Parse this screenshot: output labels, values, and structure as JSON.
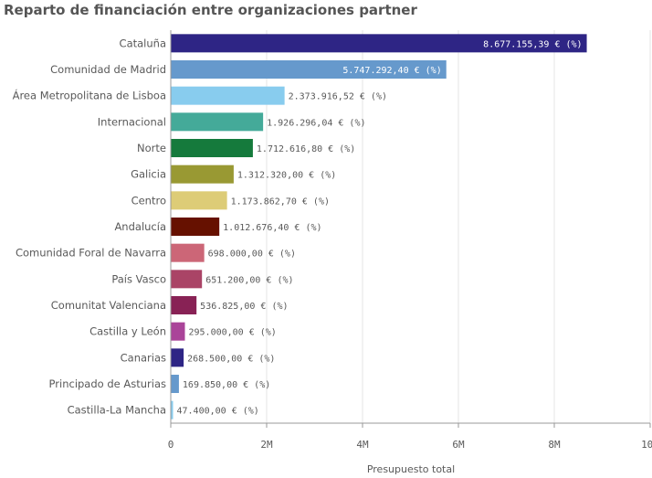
{
  "chart_data": {
    "type": "bar",
    "orientation": "horizontal",
    "title": "Reparto de financiación entre organizaciones partner",
    "xlabel": "Presupuesto total",
    "ylabel": "",
    "xlim": [
      0,
      10000000
    ],
    "ticks": [
      {
        "value": 0,
        "label": "0"
      },
      {
        "value": 2000000,
        "label": "2M"
      },
      {
        "value": 4000000,
        "label": "4M"
      },
      {
        "value": 6000000,
        "label": "6M"
      },
      {
        "value": 8000000,
        "label": "8M"
      },
      {
        "value": 10000000,
        "label": "10M"
      }
    ],
    "grid": "vertical",
    "bars": [
      {
        "category": "Cataluña",
        "value": 8677155.39,
        "label": "8.677.155,39 € (%)",
        "color": "#2e2585"
      },
      {
        "category": "Comunidad de Madrid",
        "value": 5747292.4,
        "label": "5.747.292,40 € (%)",
        "color": "#6699cc"
      },
      {
        "category": "Área Metropolitana de Lisboa",
        "value": 2373916.52,
        "label": "2.373.916,52 € (%)",
        "color": "#88ccee"
      },
      {
        "category": "Internacional",
        "value": 1926296.04,
        "label": "1.926.296,04 € (%)",
        "color": "#44aa99"
      },
      {
        "category": "Norte",
        "value": 1712616.8,
        "label": "1.712.616,80 € (%)",
        "color": "#157a3c"
      },
      {
        "category": "Galicia",
        "value": 1312320.0,
        "label": "1.312.320,00 € (%)",
        "color": "#999933"
      },
      {
        "category": "Centro",
        "value": 1173862.7,
        "label": "1.173.862,70 € (%)",
        "color": "#ddcc77"
      },
      {
        "category": "Andalucía",
        "value": 1012676.4,
        "label": "1.012.676,40 € (%)",
        "color": "#661100"
      },
      {
        "category": "Comunidad Foral de Navarra",
        "value": 698000.0,
        "label": "698.000,00 € (%)",
        "color": "#cc6677"
      },
      {
        "category": "País Vasco",
        "value": 651200.0,
        "label": "651.200,00 € (%)",
        "color": "#aa4466"
      },
      {
        "category": "Comunitat Valenciana",
        "value": 536825.0,
        "label": "536.825,00 € (%)",
        "color": "#882255"
      },
      {
        "category": "Castilla y León",
        "value": 295000.0,
        "label": "295.000,00 € (%)",
        "color": "#aa4499"
      },
      {
        "category": "Canarias",
        "value": 268500.0,
        "label": "268.500,00 € (%)",
        "color": "#2e2585"
      },
      {
        "category": "Principado de Asturias",
        "value": 169850.0,
        "label": "169.850,00 € (%)",
        "color": "#6699cc"
      },
      {
        "category": "Castilla-La Mancha",
        "value": 47400.0,
        "label": "47.400,00 € (%)",
        "color": "#88ccee"
      }
    ]
  }
}
